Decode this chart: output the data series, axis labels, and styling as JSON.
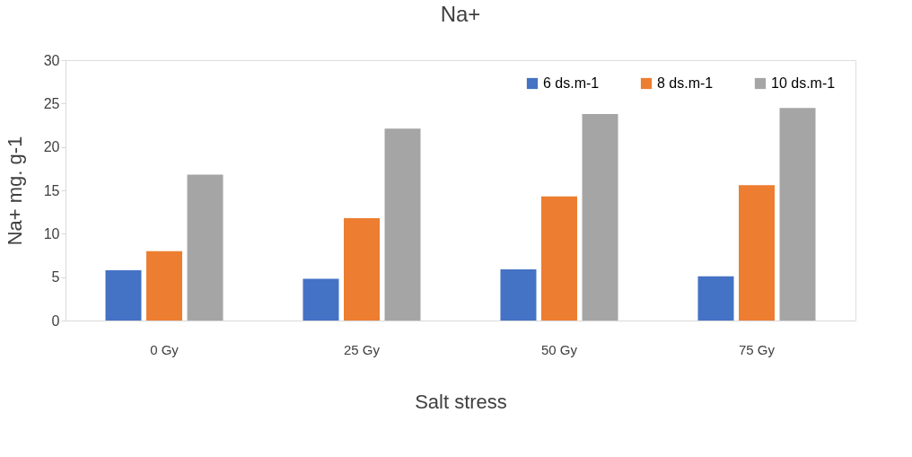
{
  "chart_data": {
    "type": "bar",
    "title": "Na+",
    "xlabel": "Salt stress",
    "ylabel": "Na+  mg. g-1",
    "categories": [
      "0 Gy",
      "25 Gy",
      "50 Gy",
      "75 Gy"
    ],
    "series": [
      {
        "name": "6  ds.m-1",
        "color": "#4472c4",
        "values": [
          5.8,
          4.8,
          5.9,
          5.1
        ]
      },
      {
        "name": "8  ds.m-1",
        "color": "#ed7d31",
        "values": [
          8.0,
          11.8,
          14.3,
          15.6
        ]
      },
      {
        "name": "10  ds.m-1",
        "color": "#a5a5a5",
        "values": [
          16.8,
          22.1,
          23.8,
          24.5
        ]
      }
    ],
    "ylim": [
      0,
      30
    ],
    "yticks": [
      0,
      5,
      10,
      15,
      20,
      25,
      30
    ],
    "grid": false,
    "legend": "top right"
  }
}
